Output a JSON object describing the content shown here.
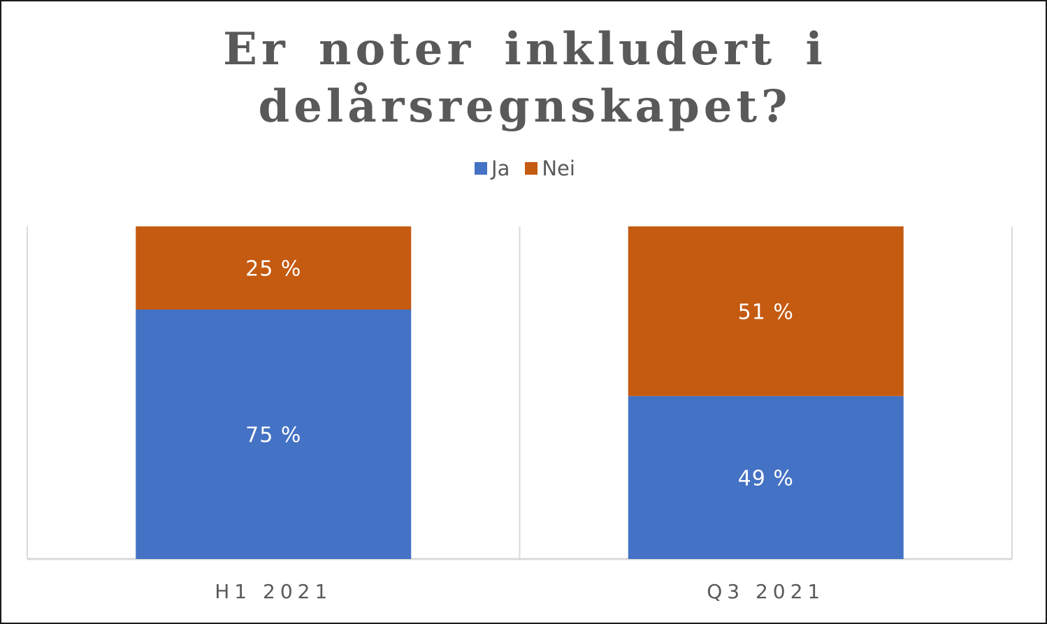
{
  "chart_data": {
    "type": "bar",
    "stacked": true,
    "percent_stacked": true,
    "title_lines": [
      "Er noter inkludert i",
      "delårsregnskapet?"
    ],
    "categories": [
      "H1 2021",
      "Q3 2021"
    ],
    "series": [
      {
        "name": "Ja",
        "values": [
          75,
          49
        ],
        "labels": [
          "75 %",
          "49 %"
        ],
        "color": "#4472C4"
      },
      {
        "name": "Nei",
        "values": [
          25,
          51
        ],
        "labels": [
          "25 %",
          "51 %"
        ],
        "color": "#C55A11"
      }
    ],
    "ylim": [
      0,
      100
    ],
    "legend_position": "top",
    "grid": false,
    "xlabel": "",
    "ylabel": ""
  }
}
